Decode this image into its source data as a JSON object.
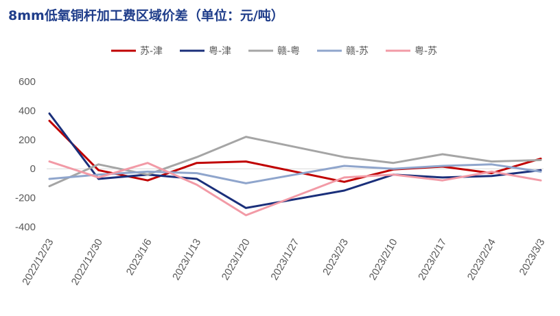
{
  "chart_data": {
    "type": "line",
    "title": "8mm低氧铜杆加工费区域价差（单位：元/吨）",
    "xlabel": "",
    "ylabel": "",
    "ylim": [
      -400,
      600
    ],
    "yticks": [
      600,
      400,
      200,
      0,
      -200,
      -400
    ],
    "grid": false,
    "legend_position": "top",
    "x": [
      "2022/12/23",
      "2022/12/30",
      "2023/1/6",
      "2023/1/13",
      "2023/1/20",
      "2023/1/27",
      "2023/2/3",
      "2023/2/10",
      "2023/2/17",
      "2023/2/24",
      "2023/3/3"
    ],
    "series": [
      {
        "name": "苏-津",
        "color": "#c00000",
        "values": [
          330,
          -10,
          -80,
          40,
          50,
          null,
          -90,
          -5,
          15,
          -30,
          70
        ]
      },
      {
        "name": "粤-津",
        "color": "#1a2f7a",
        "values": [
          380,
          -70,
          -40,
          -70,
          -270,
          null,
          -150,
          -40,
          -60,
          -50,
          -10
        ]
      },
      {
        "name": "赣-粤",
        "color": "#a5a5a5",
        "values": [
          -120,
          30,
          -40,
          80,
          220,
          null,
          80,
          40,
          100,
          50,
          60
        ]
      },
      {
        "name": "赣-苏",
        "color": "#8fa5cc",
        "values": [
          -70,
          -40,
          -20,
          -30,
          -100,
          null,
          20,
          0,
          20,
          30,
          -20
        ]
      },
      {
        "name": "粤-苏",
        "color": "#f29aa6",
        "values": [
          50,
          -60,
          40,
          -110,
          -320,
          null,
          -60,
          -40,
          -80,
          -20,
          -80
        ]
      }
    ]
  }
}
